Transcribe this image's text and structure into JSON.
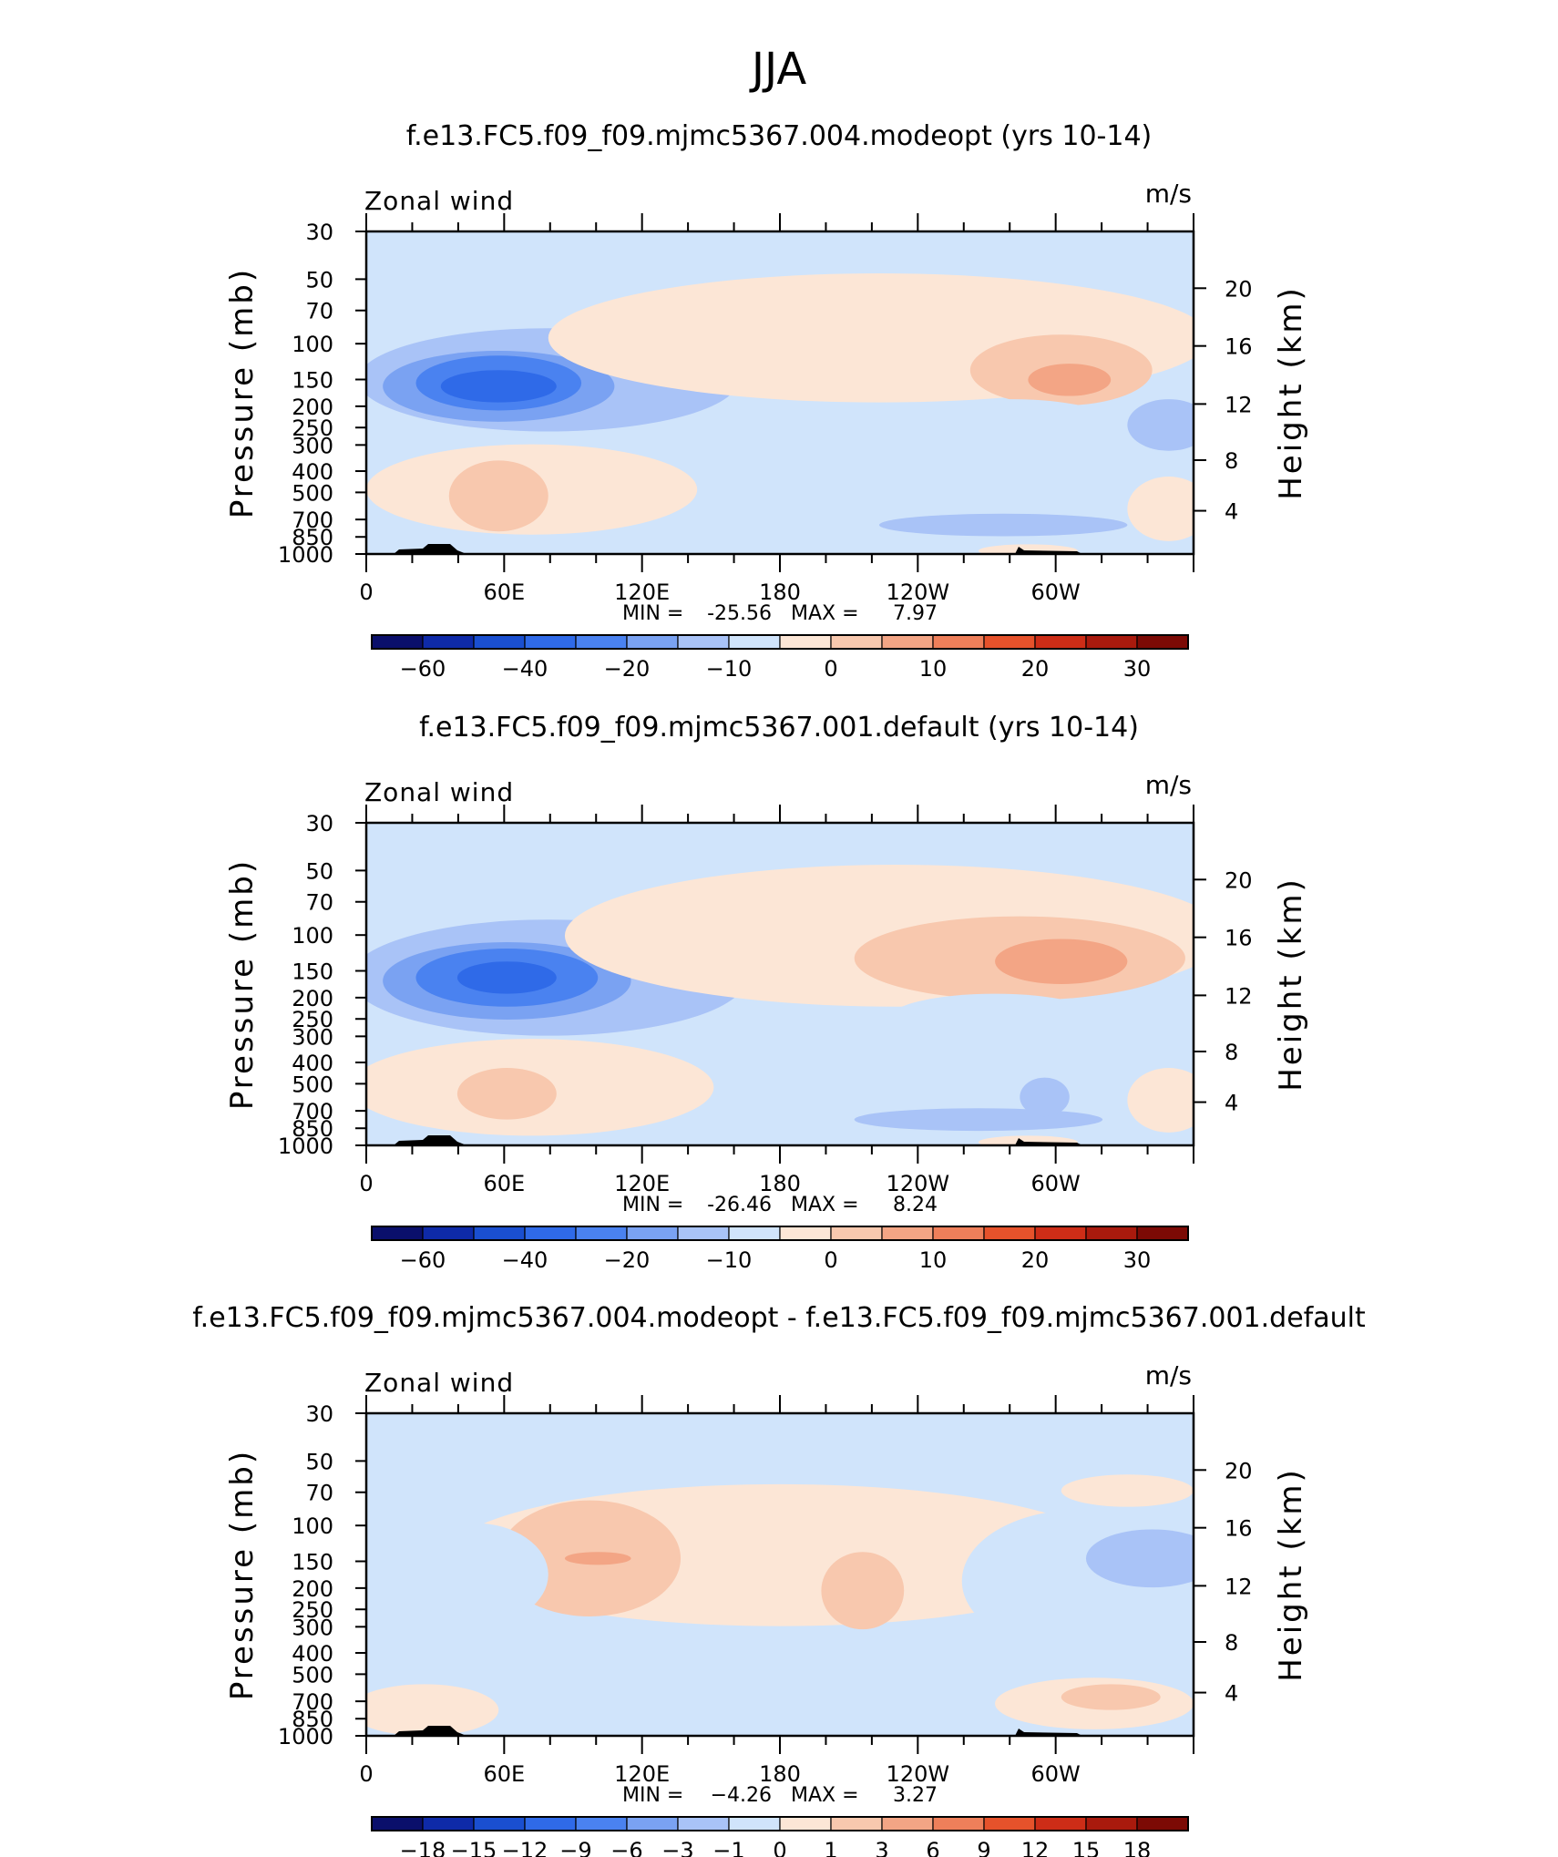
{
  "page_title": "JJA",
  "chart_data": [
    {
      "type": "heatmap",
      "title": "f.e13.FC5.f09_f09.mjmc5367.004.modeopt (yrs 10-14)",
      "left_label": "Zonal wind",
      "units": "m/s",
      "ylabel": "Pressure (mb)",
      "ylabel_right": "Height (km)",
      "yticks": [
        "30",
        "50",
        "70",
        "100",
        "150",
        "200",
        "250",
        "300",
        "400",
        "500",
        "700",
        "850",
        "1000"
      ],
      "yticks_right": [
        "20",
        "16",
        "12",
        "8",
        "4"
      ],
      "xticks": [
        "0",
        "60E",
        "120E",
        "180",
        "120W",
        "60W"
      ],
      "stats": {
        "min_label": "MIN =",
        "min": "-25.56",
        "max_label": "MAX =",
        "max": "7.97"
      },
      "colorbar_labels": [
        "−60",
        "−40",
        "−20",
        "−10",
        "0",
        "10",
        "20",
        "30"
      ],
      "colorbar_colors": [
        "#0a0f6b",
        "#0e2aa8",
        "#1a4fd0",
        "#2f6ae8",
        "#4a82f0",
        "#7aa2f2",
        "#a9c3f7",
        "#d0e4fb",
        "#fce6d6",
        "#f8c8ae",
        "#f3a585",
        "#ee7f5a",
        "#e6522b",
        "#cd2d17",
        "#a91a0d",
        "#7c0a05"
      ],
      "blobs": [
        {
          "level": -2,
          "cx": 0.22,
          "cy": 0.46,
          "rx": 0.23,
          "ry": 0.16
        },
        {
          "level": -3,
          "cx": 0.16,
          "cy": 0.48,
          "rx": 0.14,
          "ry": 0.11
        },
        {
          "level": -4,
          "cx": 0.16,
          "cy": 0.47,
          "rx": 0.1,
          "ry": 0.085
        },
        {
          "level": -5,
          "cx": 0.16,
          "cy": 0.48,
          "rx": 0.07,
          "ry": 0.05
        },
        {
          "level": 1,
          "cx": 0.62,
          "cy": 0.33,
          "rx": 0.4,
          "ry": 0.2
        },
        {
          "level": 2,
          "cx": 0.84,
          "cy": 0.43,
          "rx": 0.11,
          "ry": 0.11
        },
        {
          "level": 3,
          "cx": 0.85,
          "cy": 0.46,
          "rx": 0.05,
          "ry": 0.05
        },
        {
          "level": 1,
          "cx": 0.2,
          "cy": 0.8,
          "rx": 0.2,
          "ry": 0.14
        },
        {
          "level": 2,
          "cx": 0.16,
          "cy": 0.82,
          "rx": 0.06,
          "ry": 0.11
        },
        {
          "level": -1,
          "cx": 0.78,
          "cy": 0.62,
          "rx": 0.14,
          "ry": 0.1
        },
        {
          "level": -2,
          "cx": 0.77,
          "cy": 0.91,
          "rx": 0.15,
          "ry": 0.035
        },
        {
          "level": -2,
          "cx": 0.97,
          "cy": 0.6,
          "rx": 0.05,
          "ry": 0.08
        },
        {
          "level": 1,
          "cx": 0.97,
          "cy": 0.86,
          "rx": 0.05,
          "ry": 0.1
        },
        {
          "level": 1,
          "cx": 0.8,
          "cy": 0.99,
          "rx": 0.06,
          "ry": 0.02
        }
      ]
    },
    {
      "type": "heatmap",
      "title": "f.e13.FC5.f09_f09.mjmc5367.001.default (yrs 10-14)",
      "left_label": "Zonal wind",
      "units": "m/s",
      "ylabel": "Pressure (mb)",
      "ylabel_right": "Height (km)",
      "yticks": [
        "30",
        "50",
        "70",
        "100",
        "150",
        "200",
        "250",
        "300",
        "400",
        "500",
        "700",
        "850",
        "1000"
      ],
      "yticks_right": [
        "20",
        "16",
        "12",
        "8",
        "4"
      ],
      "xticks": [
        "0",
        "60E",
        "120E",
        "180",
        "120W",
        "60W"
      ],
      "stats": {
        "min_label": "MIN =",
        "min": "-26.46",
        "max_label": "MAX =",
        "max": "8.24"
      },
      "colorbar_labels": [
        "−60",
        "−40",
        "−20",
        "−10",
        "0",
        "10",
        "20",
        "30"
      ],
      "colorbar_colors": [
        "#0a0f6b",
        "#0e2aa8",
        "#1a4fd0",
        "#2f6ae8",
        "#4a82f0",
        "#7aa2f2",
        "#a9c3f7",
        "#d0e4fb",
        "#fce6d6",
        "#f8c8ae",
        "#f3a585",
        "#ee7f5a",
        "#e6522b",
        "#cd2d17",
        "#a91a0d",
        "#7c0a05"
      ],
      "blobs": [
        {
          "level": -2,
          "cx": 0.22,
          "cy": 0.48,
          "rx": 0.24,
          "ry": 0.18
        },
        {
          "level": -3,
          "cx": 0.17,
          "cy": 0.49,
          "rx": 0.15,
          "ry": 0.12
        },
        {
          "level": -4,
          "cx": 0.17,
          "cy": 0.48,
          "rx": 0.11,
          "ry": 0.09
        },
        {
          "level": -5,
          "cx": 0.17,
          "cy": 0.48,
          "rx": 0.06,
          "ry": 0.05
        },
        {
          "level": 1,
          "cx": 0.64,
          "cy": 0.35,
          "rx": 0.4,
          "ry": 0.22
        },
        {
          "level": 2,
          "cx": 0.79,
          "cy": 0.42,
          "rx": 0.2,
          "ry": 0.13
        },
        {
          "level": 3,
          "cx": 0.84,
          "cy": 0.43,
          "rx": 0.08,
          "ry": 0.07
        },
        {
          "level": 1,
          "cx": 0.2,
          "cy": 0.82,
          "rx": 0.22,
          "ry": 0.15
        },
        {
          "level": 2,
          "cx": 0.17,
          "cy": 0.84,
          "rx": 0.06,
          "ry": 0.08
        },
        {
          "level": -1,
          "cx": 0.76,
          "cy": 0.61,
          "rx": 0.13,
          "ry": 0.08
        },
        {
          "level": -2,
          "cx": 0.74,
          "cy": 0.92,
          "rx": 0.15,
          "ry": 0.035
        },
        {
          "level": -2,
          "cx": 0.82,
          "cy": 0.85,
          "rx": 0.03,
          "ry": 0.06
        },
        {
          "level": 1,
          "cx": 0.97,
          "cy": 0.86,
          "rx": 0.05,
          "ry": 0.1
        },
        {
          "level": 1,
          "cx": 0.8,
          "cy": 0.99,
          "rx": 0.06,
          "ry": 0.02
        }
      ]
    },
    {
      "type": "heatmap",
      "title": "f.e13.FC5.f09_f09.mjmc5367.004.modeopt - f.e13.FC5.f09_f09.mjmc5367.001.default",
      "left_label": "Zonal wind",
      "units": "m/s",
      "ylabel": "Pressure (mb)",
      "ylabel_right": "Height (km)",
      "yticks": [
        "30",
        "50",
        "70",
        "100",
        "150",
        "200",
        "250",
        "300",
        "400",
        "500",
        "700",
        "850",
        "1000"
      ],
      "yticks_right": [
        "20",
        "16",
        "12",
        "8",
        "4"
      ],
      "xticks": [
        "0",
        "60E",
        "120E",
        "180",
        "120W",
        "60W"
      ],
      "stats": {
        "min_label": "MIN =",
        "min": "−4.26",
        "max_label": "MAX =",
        "max": "3.27"
      },
      "colorbar_labels": [
        "−18",
        "−15",
        "−12",
        "−9",
        "−6",
        "−3",
        "−1",
        "0",
        "1",
        "3",
        "6",
        "9",
        "12",
        "15",
        "18"
      ],
      "colorbar_colors": [
        "#0a0f6b",
        "#0e2aa8",
        "#1a4fd0",
        "#2f6ae8",
        "#4a82f0",
        "#7aa2f2",
        "#a9c3f7",
        "#d0e4fb",
        "#fce6d6",
        "#f8c8ae",
        "#f3a585",
        "#ee7f5a",
        "#e6522b",
        "#cd2d17",
        "#a91a0d",
        "#7c0a05"
      ],
      "blobs": [
        {
          "level": 1,
          "cx": 0.5,
          "cy": 0.44,
          "rx": 0.4,
          "ry": 0.22
        },
        {
          "level": 2,
          "cx": 0.27,
          "cy": 0.45,
          "rx": 0.11,
          "ry": 0.18
        },
        {
          "level": 3,
          "cx": 0.28,
          "cy": 0.45,
          "rx": 0.04,
          "ry": 0.02
        },
        {
          "level": 2,
          "cx": 0.6,
          "cy": 0.55,
          "rx": 0.05,
          "ry": 0.12
        },
        {
          "level": -1,
          "cx": 0.13,
          "cy": 0.5,
          "rx": 0.09,
          "ry": 0.16
        },
        {
          "level": -1,
          "cx": 0.86,
          "cy": 0.52,
          "rx": 0.14,
          "ry": 0.22
        },
        {
          "level": -2,
          "cx": 0.95,
          "cy": 0.45,
          "rx": 0.08,
          "ry": 0.09
        },
        {
          "level": -1,
          "cx": 0.25,
          "cy": 0.82,
          "rx": 0.17,
          "ry": 0.06
        },
        {
          "level": 1,
          "cx": 0.07,
          "cy": 0.92,
          "rx": 0.09,
          "ry": 0.08
        },
        {
          "level": 1,
          "cx": 0.88,
          "cy": 0.9,
          "rx": 0.12,
          "ry": 0.08
        },
        {
          "level": 2,
          "cx": 0.9,
          "cy": 0.88,
          "rx": 0.06,
          "ry": 0.04
        },
        {
          "level": 1,
          "cx": 0.92,
          "cy": 0.24,
          "rx": 0.08,
          "ry": 0.05
        }
      ]
    }
  ]
}
